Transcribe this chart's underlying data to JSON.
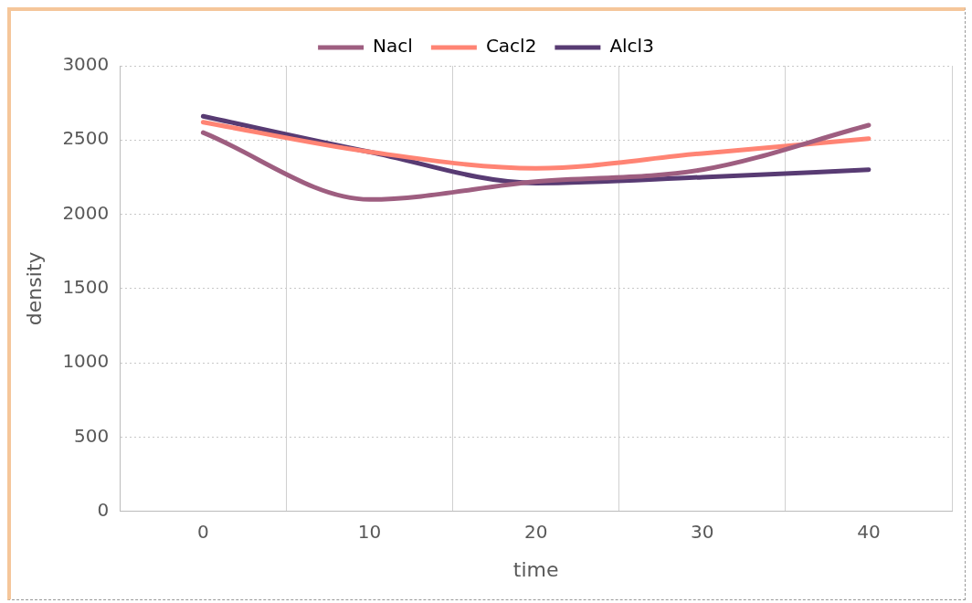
{
  "chart_data": {
    "type": "line",
    "xlabel": "time",
    "ylabel": "density",
    "categories": [
      "0",
      "10",
      "20",
      "30",
      "40"
    ],
    "series": [
      {
        "name": "Nacl",
        "color": "#9e5e80",
        "values": [
          2550,
          2100,
          2220,
          2300,
          2600
        ]
      },
      {
        "name": "Cacl2",
        "color": "#ff8474",
        "values": [
          2620,
          2420,
          2310,
          2410,
          2510
        ]
      },
      {
        "name": "Alcl3",
        "color": "#583b73",
        "values": [
          2660,
          2420,
          2210,
          2250,
          2300
        ]
      }
    ],
    "ylim": [
      0,
      3000
    ],
    "yticks": [
      0,
      500,
      1000,
      1500,
      2000,
      2500,
      3000
    ],
    "grid": true,
    "legend": "top",
    "marker": "none",
    "line_style": "solid"
  }
}
